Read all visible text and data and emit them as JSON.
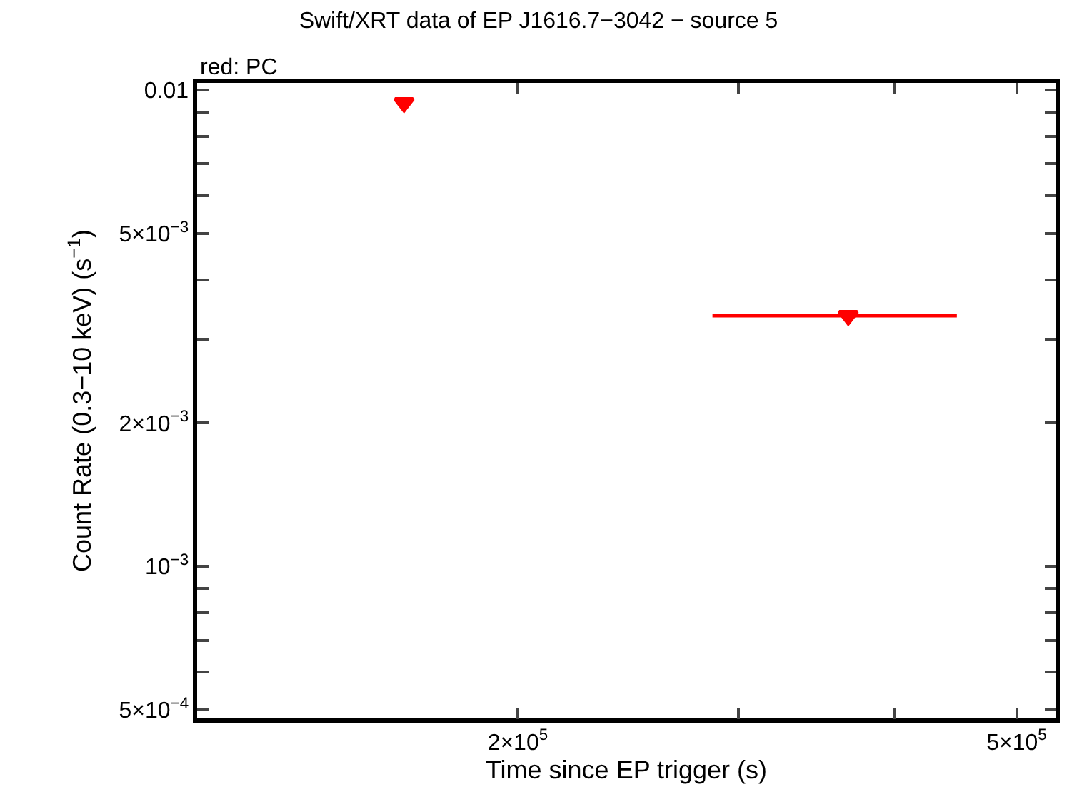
{
  "chart_data": {
    "type": "scatter",
    "title": "Swift/XRT data of EP J1616.7−3042 − source 5",
    "xlabel": "Time since EP trigger (s)",
    "ylabel": "Count Rate (0.3−10 keV) (s$^{−1}$)",
    "annotations": [
      "red: PC"
    ],
    "log": "xy",
    "marker": "triangle",
    "series": [
      {
        "color": "#ff0000",
        "x": [
          162300,
          367000
        ],
        "values": [
          0.0094,
          0.00336
        ],
        "xerrors": [
          null,
          [
            286000,
            448000
          ]
        ]
      }
    ],
    "xlim": [
      111000,
      537000
    ],
    "ylim": [
      0.00048,
      0.01035
    ],
    "xticks": [
      {
        "value": 200000,
        "label": "2×10$^{5}$"
      },
      {
        "value": 300000,
        "label": null
      },
      {
        "value": 400000,
        "label": null
      },
      {
        "value": 500000,
        "label": "5×10$^{5}$"
      }
    ],
    "yticks": [
      {
        "value": 0.01,
        "label": "0.01"
      },
      {
        "value": 0.009,
        "label": null
      },
      {
        "value": 0.008,
        "label": null
      },
      {
        "value": 0.007,
        "label": null
      },
      {
        "value": 0.006,
        "label": null
      },
      {
        "value": 0.005,
        "label": "5×10$^{−3}$"
      },
      {
        "value": 0.004,
        "label": null
      },
      {
        "value": 0.003,
        "label": null
      },
      {
        "value": 0.002,
        "label": "2×10$^{−3}$"
      },
      {
        "value": 0.001,
        "label": "10$^{−3}$"
      },
      {
        "value": 0.0009,
        "label": null
      },
      {
        "value": 0.0008,
        "label": null
      },
      {
        "value": 0.0007,
        "label": null
      },
      {
        "value": 0.0006,
        "label": null
      },
      {
        "value": 0.0005,
        "label": "5×10$^{−4}$"
      }
    ]
  }
}
